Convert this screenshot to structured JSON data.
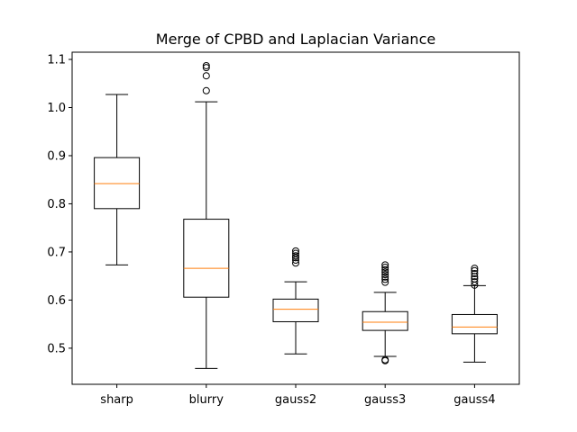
{
  "chart_data": {
    "type": "box",
    "title": "Merge of CPBD and Laplacian Variance",
    "xlabel": "",
    "ylabel": "",
    "ylim": [
      0.425,
      1.115
    ],
    "yticks": [
      "0.5",
      "0.6",
      "0.7",
      "0.8",
      "0.9",
      "1.0",
      "1.1"
    ],
    "grid": false,
    "categories": [
      "sharp",
      "blurry",
      "gauss2",
      "gauss3",
      "gauss4"
    ],
    "boxes": [
      {
        "label": "sharp",
        "whisker_low": 0.673,
        "q1": 0.79,
        "median": 0.842,
        "q3": 0.896,
        "whisker_high": 1.027,
        "outliers": []
      },
      {
        "label": "blurry",
        "whisker_low": 0.458,
        "q1": 0.606,
        "median": 0.666,
        "q3": 0.768,
        "whisker_high": 1.012,
        "outliers": [
          1.035,
          1.066,
          1.083,
          1.087
        ]
      },
      {
        "label": "gauss2",
        "whisker_low": 0.488,
        "q1": 0.555,
        "median": 0.581,
        "q3": 0.602,
        "whisker_high": 0.638,
        "outliers": [
          0.677,
          0.683,
          0.688,
          0.692,
          0.697,
          0.702
        ]
      },
      {
        "label": "gauss3",
        "whisker_low": 0.483,
        "q1": 0.537,
        "median": 0.554,
        "q3": 0.576,
        "whisker_high": 0.616,
        "outliers": [
          0.474,
          0.476,
          0.637,
          0.643,
          0.648,
          0.653,
          0.658,
          0.663,
          0.668,
          0.673
        ]
      },
      {
        "label": "gauss4",
        "whisker_low": 0.471,
        "q1": 0.53,
        "median": 0.544,
        "q3": 0.57,
        "whisker_high": 0.63,
        "outliers": [
          0.631,
          0.638,
          0.644,
          0.649,
          0.655,
          0.661,
          0.666
        ]
      }
    ],
    "colors": {
      "box": "#000000",
      "median": "#ff7f0e",
      "background": "#ffffff"
    }
  }
}
